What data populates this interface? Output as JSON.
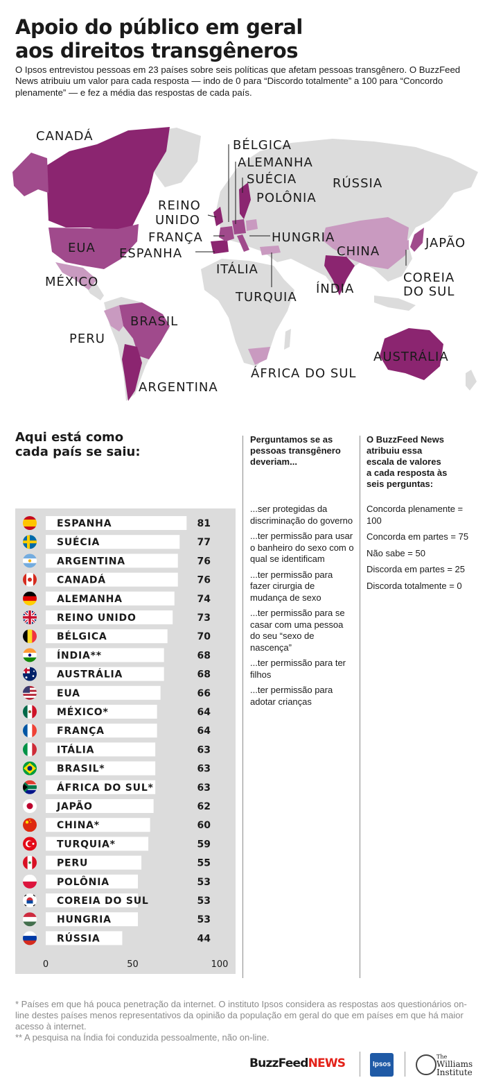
{
  "title_lines": [
    "Apoio do público em geral",
    "aos direitos transgêneros"
  ],
  "intro": "O Ipsos entrevistou pessoas em 23 países sobre seis políticas que afetam pessoas transgênero. O BuzzFeed News atribuiu um valor para cada resposta — indo de 0 para “Discordo totalmente” a 100 para “Concordo plenamente” — e fez a média das respostas de cada país.",
  "colors": {
    "map_dark": "#8b2570",
    "map_mid": "#a04a8c",
    "map_light": "#c99ac0",
    "map_gray": "#dcdcdc",
    "chart_bg": "#dcdcdc",
    "bar": "#ffffff"
  },
  "map_labels": {
    "canada": "CANADÁ",
    "eua": "EUA",
    "mexico": "MÉXICO",
    "peru": "PERU",
    "brasil": "BRASIL",
    "argentina": "ARGENTINA",
    "reino_unido_1": "REINO",
    "reino_unido_2": "UNIDO",
    "franca": "FRANÇA",
    "espanha": "ESPANHA",
    "belgica": "BÉLGICA",
    "alemanha": "ALEMANHA",
    "suecia": "SUÉCIA",
    "polonia": "POLÔNIA",
    "hungria": "HUNGRIA",
    "italia": "ITÁLIA",
    "turquia": "TURQUIA",
    "russia": "RÚSSIA",
    "china": "CHINA",
    "japao": "JAPÃO",
    "india": "ÍNDIA",
    "coreia_1": "COREIA",
    "coreia_2": "DO SUL",
    "africa_do_sul": "ÁFRICA DO SUL",
    "australia": "AUSTRÁLIA"
  },
  "chart_heading": [
    "Aqui está como",
    "cada país se saiu:"
  ],
  "chart_data": {
    "type": "bar",
    "orientation": "horizontal",
    "categories": [
      "ESPANHA",
      "SUÉCIA",
      "ARGENTINA",
      "CANADÁ",
      "ALEMANHA",
      "REINO UNIDO",
      "BÉLGICA",
      "ÍNDIA**",
      "AUSTRÁLIA",
      "EUA",
      "MÉXICO*",
      "FRANÇA",
      "ITÁLIA",
      "BRASIL*",
      "ÁFRICA DO SUL*",
      "JAPÃO",
      "CHINA*",
      "TURQUIA*",
      "PERU",
      "POLÔNIA",
      "COREIA DO SUL",
      "HUNGRIA",
      "RÚSSIA"
    ],
    "values": [
      81,
      77,
      76,
      76,
      74,
      73,
      70,
      68,
      68,
      66,
      64,
      64,
      63,
      63,
      63,
      62,
      60,
      59,
      55,
      53,
      53,
      53,
      44
    ],
    "flags": [
      "spain-flag-icon",
      "sweden-flag-icon",
      "argentina-flag-icon",
      "canada-flag-icon",
      "germany-flag-icon",
      "uk-flag-icon",
      "belgium-flag-icon",
      "india-flag-icon",
      "australia-flag-icon",
      "usa-flag-icon",
      "mexico-flag-icon",
      "france-flag-icon",
      "italy-flag-icon",
      "brazil-flag-icon",
      "south-africa-flag-icon",
      "japan-flag-icon",
      "china-flag-icon",
      "turkey-flag-icon",
      "peru-flag-icon",
      "poland-flag-icon",
      "south-korea-flag-icon",
      "hungary-flag-icon",
      "russia-flag-icon"
    ],
    "xlim": [
      0,
      100
    ],
    "xticks": [
      "0",
      "50",
      "100"
    ],
    "title": "",
    "xlabel": "",
    "ylabel": ""
  },
  "questions": {
    "heading": [
      "Perguntamos se as",
      "pessoas transgênero",
      "deveriam..."
    ],
    "items": [
      "...ser protegidas da discriminação do governo",
      "...ter permissão para usar o banheiro do sexo com o qual se identificam",
      "...ter permissão para fazer cirurgia de mudança de sexo",
      "...ter permissão para se casar com uma pessoa do seu “sexo de nascença”",
      "...ter permissão para ter filhos",
      "...ter permissão para adotar crianças"
    ]
  },
  "scale": {
    "heading": [
      "O BuzzFeed News",
      "atribuiu essa",
      "escala de valores",
      "a cada resposta às",
      "seis perguntas:"
    ],
    "items": [
      "Concorda plenamente = 100",
      "Concorda em partes = 75",
      "Não sabe = 50",
      "Discorda em partes = 25",
      "Discorda totalmente = 0"
    ]
  },
  "footnotes": [
    "* Países em que há pouca penetração da internet. O instituto Ipsos considera as respostas aos questionários on-line destes países menos representativos da opinião da população em geral do que em países em que há maior acesso à internet.",
    "** A pesquisa na Índia foi conduzida pessoalmente, não on-line."
  ],
  "logos": {
    "buzzfeed": "BuzzFeed",
    "news": "NEWS",
    "ipsos": "Ipsos",
    "williams_1": "The",
    "williams_2": "Williams",
    "williams_3": "Institute"
  }
}
